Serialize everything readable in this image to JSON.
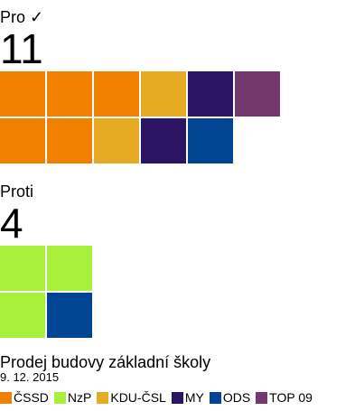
{
  "chart_data": {
    "type": "waffle",
    "parties": [
      {
        "name": "ČSSD",
        "color": "#f18000"
      },
      {
        "name": "NzP",
        "color": "#a8f03c"
      },
      {
        "name": "KDU-ČSL",
        "color": "#e6ab22"
      },
      {
        "name": "MY",
        "color": "#2b1464"
      },
      {
        "name": "ODS",
        "color": "#004494"
      },
      {
        "name": "TOP 09",
        "color": "#75386e"
      }
    ],
    "groups": [
      {
        "title": "Pro ✓",
        "count": "11",
        "votes": [
          {
            "party": "ČSSD",
            "value": 5
          },
          {
            "party": "KDU-ČSL",
            "value": 2
          },
          {
            "party": "MY",
            "value": 2
          },
          {
            "party": "TOP 09",
            "value": 1
          },
          {
            "party": "ODS",
            "value": 1
          }
        ]
      },
      {
        "title": "Proti",
        "count": "4",
        "votes": [
          {
            "party": "NzP",
            "value": 3
          },
          {
            "party": "ODS",
            "value": 1
          }
        ]
      }
    ],
    "title": "Prodej budovy základní školy",
    "date": "9. 12. 2015"
  }
}
